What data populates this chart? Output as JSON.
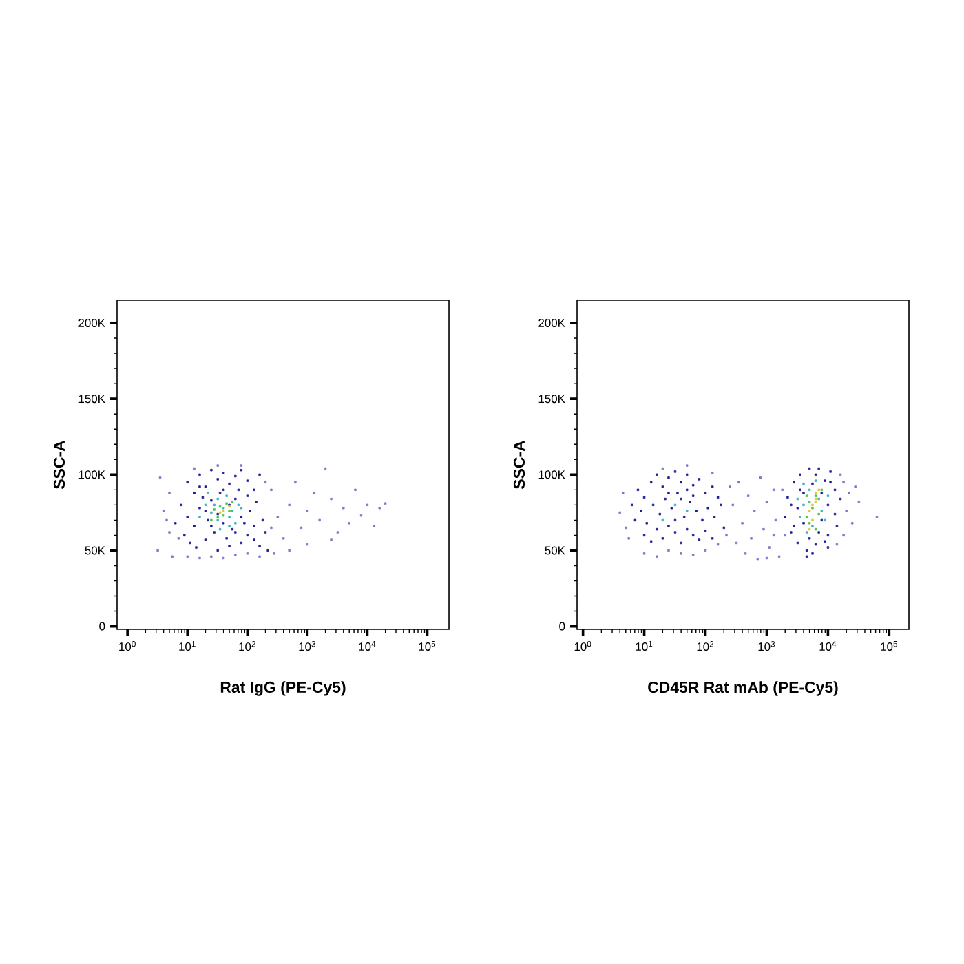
{
  "chart_data": [
    {
      "type": "scatter",
      "xlabel": "Rat IgG (PE-Cy5)",
      "ylabel": "SSC-A",
      "log": "x",
      "marker": "square",
      "xlim": [
        0.67,
        230000
      ],
      "ylim": [
        -2000,
        215000
      ],
      "xticks": [
        {
          "value": 1,
          "label": "10$^{0}$"
        },
        {
          "value": 10,
          "label": "10$^{1}$"
        },
        {
          "value": 100,
          "label": "10$^{2}$"
        },
        {
          "value": 1000,
          "label": "10$^{3}$"
        },
        {
          "value": 10000,
          "label": "10$^{4}$"
        },
        {
          "value": 100000,
          "label": "10$^{5}$"
        }
      ],
      "yticks": [
        0,
        {
          "value": 50000,
          "label": "50K"
        },
        {
          "value": 100000,
          "label": "100K"
        },
        {
          "value": 150000,
          "label": "150K"
        },
        {
          "value": 200000,
          "label": "200K"
        }
      ],
      "series": [
        {
          "color": "#7878cc",
          "x": [
            3.2,
            3.5,
            5.0,
            4.0,
            5.6,
            7.1,
            10,
            16,
            25,
            40,
            63,
            100,
            160,
            13,
            32,
            79,
            200,
            250,
            5.0,
            4.5,
            250,
            320,
            400,
            500,
            630,
            790,
            1000,
            1300,
            1600,
            2000,
            2500,
            3200,
            4000,
            5000,
            6300,
            7900,
            10000,
            13000,
            16000,
            20000,
            280,
            500,
            1000,
            2500
          ],
          "values": [
            50000,
            98000,
            88000,
            76000,
            46000,
            58000,
            46000,
            45000,
            46000,
            45000,
            47000,
            48000,
            46000,
            104000,
            106000,
            106000,
            95000,
            65000,
            62000,
            70000,
            90000,
            72000,
            58000,
            80000,
            95000,
            65000,
            76000,
            88000,
            70000,
            104000,
            84000,
            62000,
            78000,
            68000,
            90000,
            73000,
            80000,
            66000,
            78000,
            81000,
            48000,
            50000,
            54000,
            57000
          ]
        },
        {
          "color": "#1e1e9a",
          "x": [
            10,
            13,
            16,
            20,
            25,
            32,
            40,
            50,
            63,
            79,
            100,
            130,
            160,
            7.9,
            10,
            13,
            16,
            18,
            22,
            28,
            35,
            45,
            56,
            71,
            89,
            110,
            140,
            180,
            200,
            6.3,
            8.9,
            11,
            14,
            20,
            32,
            50,
            79,
            100,
            130,
            160,
            220,
            16,
            25,
            40,
            63,
            100,
            20,
            32,
            79,
            130,
            25,
            50,
            40,
            63
          ],
          "values": [
            95000,
            88000,
            100000,
            92000,
            103000,
            97000,
            101000,
            94000,
            99000,
            103000,
            96000,
            90000,
            100000,
            80000,
            72000,
            66000,
            78000,
            85000,
            70000,
            62000,
            88000,
            58000,
            64000,
            90000,
            68000,
            76000,
            82000,
            70000,
            62000,
            68000,
            60000,
            55000,
            52000,
            57000,
            50000,
            53000,
            55000,
            60000,
            57000,
            53000,
            50000,
            92000,
            83000,
            90000,
            84000,
            86000,
            76000,
            74000,
            72000,
            66000,
            66000,
            80000,
            68000,
            62000
          ]
        },
        {
          "color": "#3ab4c6",
          "x": [
            20,
            25,
            32,
            32,
            40,
            45,
            50,
            56,
            63,
            71,
            16,
            22,
            35,
            79,
            28,
            50
          ],
          "values": [
            80000,
            75000,
            84000,
            70000,
            78000,
            86000,
            72000,
            76000,
            68000,
            80000,
            72000,
            88000,
            64000,
            78000,
            80000,
            66000
          ]
        },
        {
          "color": "#46c846",
          "x": [
            28,
            35,
            40,
            45,
            50,
            32,
            56,
            25
          ],
          "values": [
            77000,
            79000,
            73000,
            81000,
            76000,
            72000,
            82000,
            70000
          ]
        },
        {
          "color": "#e0c828",
          "x": [
            40,
            50,
            35
          ],
          "values": [
            76000,
            79000,
            75000
          ]
        }
      ]
    },
    {
      "type": "scatter",
      "xlabel": "CD45R Rat mAb (PE-Cy5)",
      "ylabel": "SSC-A",
      "log": "x",
      "marker": "square",
      "xlim": [
        0.8,
        210000
      ],
      "ylim": [
        -2000,
        215000
      ],
      "xticks": [
        {
          "value": 1,
          "label": "10$^{0}$"
        },
        {
          "value": 10,
          "label": "10$^{1}$"
        },
        {
          "value": 100,
          "label": "10$^{2}$"
        },
        {
          "value": 1000,
          "label": "10$^{3}$"
        },
        {
          "value": 10000,
          "label": "10$^{4}$"
        },
        {
          "value": 100000,
          "label": "10$^{5}$"
        }
      ],
      "yticks": [
        0,
        {
          "value": 50000,
          "label": "50K"
        },
        {
          "value": 100000,
          "label": "100K"
        },
        {
          "value": 150000,
          "label": "150K"
        },
        {
          "value": 200000,
          "label": "200K"
        }
      ],
      "series": [
        {
          "color": "#7878cc",
          "x": [
            4.0,
            5.0,
            4.5,
            5.6,
            10,
            16,
            25,
            40,
            63,
            100,
            160,
            220,
            250,
            20,
            50,
            130,
            280,
            350,
            400,
            500,
            560,
            630,
            790,
            890,
            1000,
            1100,
            1300,
            1400,
            1600,
            450,
            710,
            1000,
            320,
            1300,
            18000,
            20000,
            22000,
            25000,
            28000,
            32000,
            18000,
            63000,
            1800,
            2000,
            16000,
            14000
          ],
          "values": [
            75000,
            65000,
            88000,
            58000,
            48000,
            46000,
            50000,
            48000,
            47000,
            50000,
            54000,
            60000,
            92000,
            104000,
            106000,
            101000,
            80000,
            95000,
            68000,
            86000,
            58000,
            76000,
            98000,
            64000,
            82000,
            52000,
            90000,
            70000,
            46000,
            48000,
            44000,
            45000,
            55000,
            60000,
            95000,
            76000,
            88000,
            68000,
            92000,
            82000,
            60000,
            72000,
            90000,
            60000,
            100000,
            54000
          ]
        },
        {
          "color": "#1e1e9a",
          "x": [
            6.3,
            7.9,
            10,
            13,
            16,
            20,
            25,
            32,
            40,
            50,
            63,
            79,
            100,
            130,
            160,
            7.1,
            8.9,
            11,
            14,
            18,
            22,
            28,
            35,
            45,
            56,
            71,
            89,
            110,
            140,
            180,
            10,
            13,
            16,
            20,
            25,
            32,
            40,
            50,
            63,
            79,
            100,
            130,
            200,
            25,
            40,
            63,
            32,
            50,
            2000,
            2200,
            2500,
            2800,
            3200,
            3200,
            3500,
            4000,
            4000,
            4500,
            5000,
            5000,
            5600,
            6300,
            6300,
            7100,
            7900,
            7900,
            8900,
            10000,
            10000,
            11000,
            13000,
            13000,
            14000,
            16000,
            2800,
            3500,
            4500,
            5600,
            7100,
            10000,
            2500,
            11000,
            8900
          ],
          "values": [
            80000,
            90000,
            85000,
            95000,
            100000,
            92000,
            98000,
            102000,
            95000,
            100000,
            93000,
            97000,
            88000,
            92000,
            85000,
            70000,
            76000,
            68000,
            80000,
            74000,
            84000,
            78000,
            88000,
            72000,
            82000,
            76000,
            70000,
            78000,
            72000,
            80000,
            60000,
            56000,
            64000,
            58000,
            66000,
            62000,
            55000,
            64000,
            60000,
            57000,
            63000,
            58000,
            65000,
            88000,
            84000,
            86000,
            70000,
            90000,
            72000,
            85000,
            62000,
            95000,
            78000,
            55000,
            100000,
            68000,
            88000,
            50000,
            104000,
            58000,
            94000,
            54000,
            100000,
            62000,
            88000,
            70000,
            96000,
            60000,
            80000,
            102000,
            74000,
            90000,
            66000,
            84000,
            66000,
            90000,
            46000,
            48000,
            104000,
            52000,
            80000,
            95000,
            56000
          ]
        },
        {
          "color": "#3ab4c6",
          "x": [
            3500,
            4000,
            4500,
            5000,
            5600,
            7100,
            7900,
            8900,
            4000,
            6300,
            3200,
            10000,
            32,
            50,
            20
          ],
          "values": [
            72000,
            80000,
            62000,
            90000,
            66000,
            84000,
            76000,
            70000,
            94000,
            96000,
            84000,
            86000,
            80000,
            76000,
            70000
          ]
        },
        {
          "color": "#46c846",
          "x": [
            4500,
            5000,
            5600,
            6300,
            7100,
            5000,
            6300,
            7900,
            4500
          ],
          "values": [
            72000,
            68000,
            78000,
            86000,
            74000,
            82000,
            64000,
            90000,
            86000
          ]
        },
        {
          "color": "#e0c828",
          "x": [
            5000,
            6300,
            5600,
            6300,
            5000,
            7100,
            5600,
            6300
          ],
          "values": [
            76000,
            82000,
            70000,
            88000,
            64000,
            90000,
            80000,
            84000
          ]
        }
      ]
    }
  ]
}
